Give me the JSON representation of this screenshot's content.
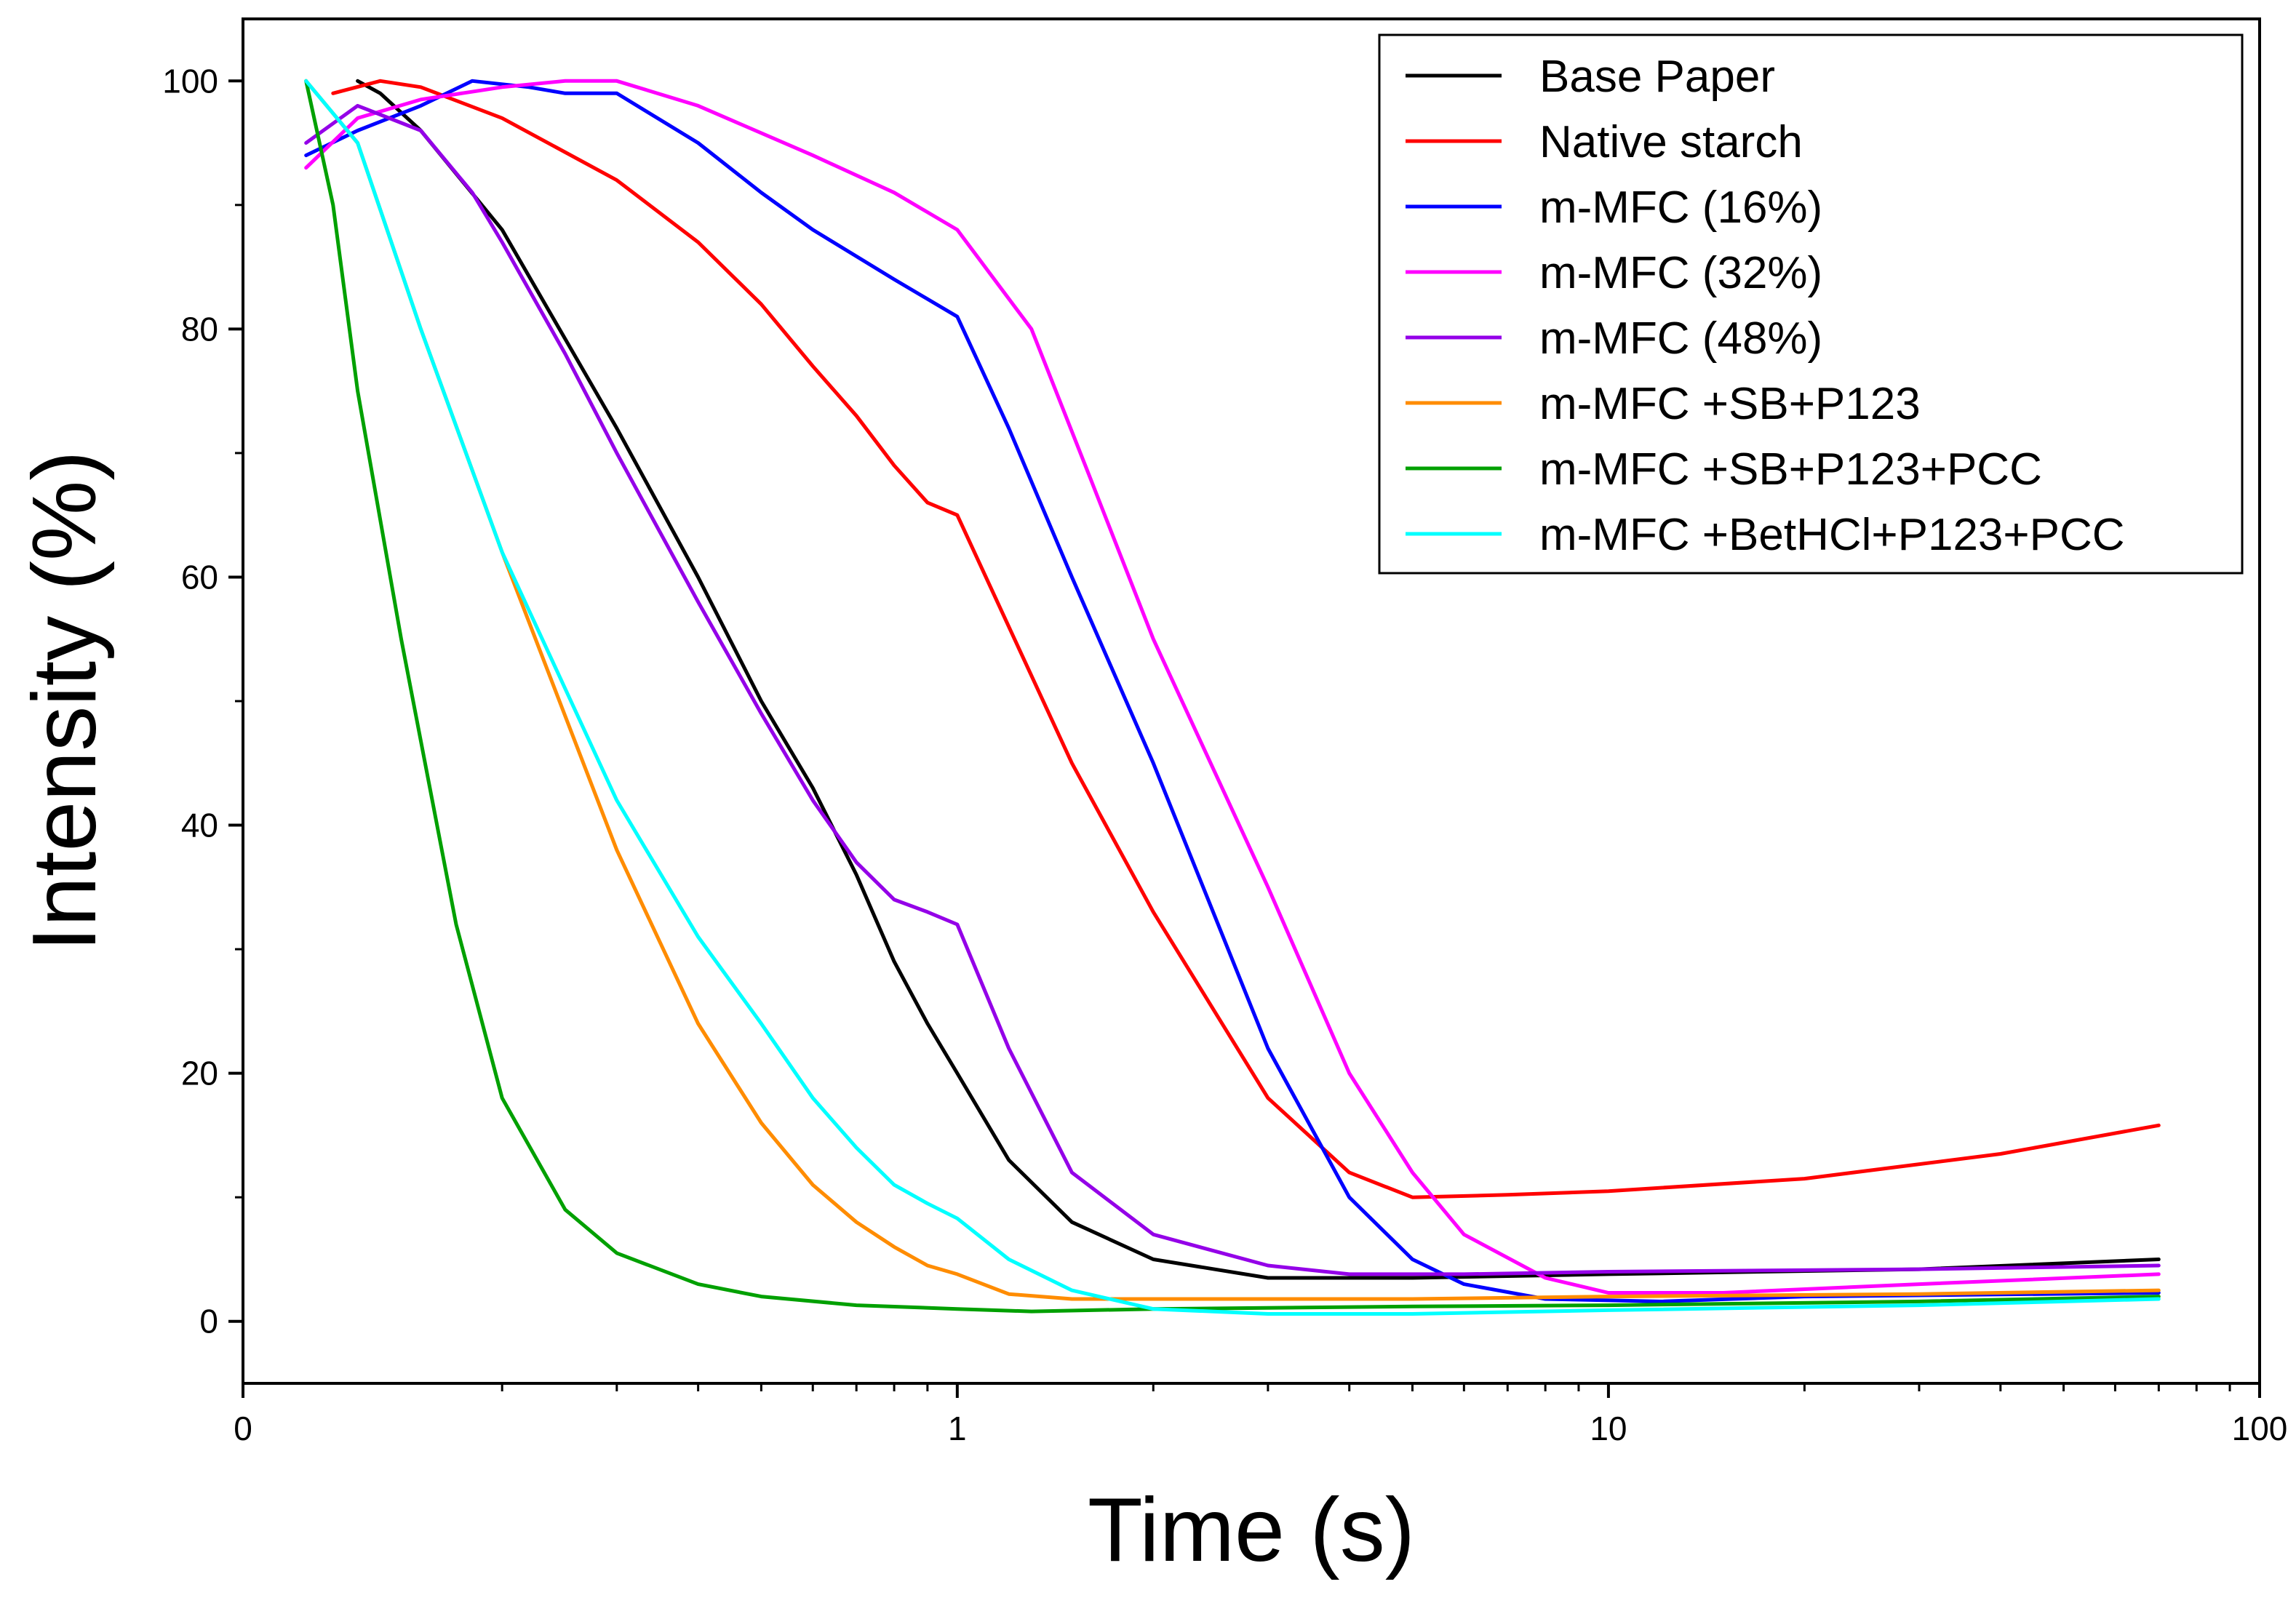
{
  "chart_data": {
    "type": "line",
    "title": "",
    "xlabel": "Time (s)",
    "ylabel": "Intensity (%)",
    "xscale": "log",
    "xlim": [
      0.08,
      100
    ],
    "ylim": [
      -5,
      105
    ],
    "x_ticks": [
      {
        "value": 0.08,
        "label": "0"
      },
      {
        "value": 1,
        "label": "1"
      },
      {
        "value": 10,
        "label": "10"
      },
      {
        "value": 100,
        "label": "100"
      }
    ],
    "y_ticks": [
      0,
      20,
      40,
      60,
      80,
      100
    ],
    "y_minor_step": 10,
    "grid": false,
    "legend_position": "top-right",
    "series": [
      {
        "name": "Base Paper",
        "color": "#000000",
        "points": [
          [
            0.12,
            100
          ],
          [
            0.13,
            99
          ],
          [
            0.15,
            96
          ],
          [
            0.2,
            88
          ],
          [
            0.3,
            72
          ],
          [
            0.4,
            60
          ],
          [
            0.5,
            50
          ],
          [
            0.6,
            43
          ],
          [
            0.7,
            36
          ],
          [
            0.8,
            29
          ],
          [
            0.9,
            24
          ],
          [
            1.0,
            20
          ],
          [
            1.2,
            13
          ],
          [
            1.5,
            8
          ],
          [
            2,
            5
          ],
          [
            3,
            3.5
          ],
          [
            5,
            3.5
          ],
          [
            10,
            3.8
          ],
          [
            30,
            4.2
          ],
          [
            70,
            5
          ]
        ]
      },
      {
        "name": "Native starch",
        "color": "#ff0000",
        "points": [
          [
            0.11,
            99
          ],
          [
            0.13,
            100
          ],
          [
            0.15,
            99.5
          ],
          [
            0.2,
            97
          ],
          [
            0.3,
            92
          ],
          [
            0.4,
            87
          ],
          [
            0.5,
            82
          ],
          [
            0.6,
            77
          ],
          [
            0.7,
            73
          ],
          [
            0.8,
            69
          ],
          [
            0.9,
            66
          ],
          [
            1.0,
            65
          ],
          [
            1.2,
            56
          ],
          [
            1.5,
            45
          ],
          [
            2,
            33
          ],
          [
            3,
            18
          ],
          [
            4,
            12
          ],
          [
            5,
            10
          ],
          [
            7,
            10.2
          ],
          [
            10,
            10.5
          ],
          [
            20,
            11.5
          ],
          [
            40,
            13.5
          ],
          [
            70,
            15.8
          ]
        ]
      },
      {
        "name": "m-MFC (16%)",
        "color": "#0000ff",
        "points": [
          [
            0.1,
            94
          ],
          [
            0.12,
            96
          ],
          [
            0.15,
            98
          ],
          [
            0.18,
            100
          ],
          [
            0.22,
            99.5
          ],
          [
            0.25,
            99
          ],
          [
            0.3,
            99
          ],
          [
            0.4,
            95
          ],
          [
            0.5,
            91
          ],
          [
            0.6,
            88
          ],
          [
            0.8,
            84
          ],
          [
            1.0,
            81
          ],
          [
            1.2,
            72
          ],
          [
            1.5,
            60
          ],
          [
            2,
            45
          ],
          [
            3,
            22
          ],
          [
            4,
            10
          ],
          [
            5,
            5
          ],
          [
            6,
            3
          ],
          [
            8,
            1.8
          ],
          [
            12,
            1.6
          ],
          [
            20,
            2
          ],
          [
            70,
            2.3
          ]
        ]
      },
      {
        "name": "m-MFC (32%)",
        "color": "#ff00ff",
        "points": [
          [
            0.1,
            93
          ],
          [
            0.12,
            97
          ],
          [
            0.15,
            98.5
          ],
          [
            0.2,
            99.5
          ],
          [
            0.25,
            100
          ],
          [
            0.3,
            100
          ],
          [
            0.4,
            98
          ],
          [
            0.6,
            94
          ],
          [
            0.8,
            91
          ],
          [
            1.0,
            88
          ],
          [
            1.3,
            80
          ],
          [
            1.6,
            68
          ],
          [
            2,
            55
          ],
          [
            3,
            35
          ],
          [
            4,
            20
          ],
          [
            5,
            12
          ],
          [
            6,
            7
          ],
          [
            8,
            3.5
          ],
          [
            10,
            2.3
          ],
          [
            15,
            2.3
          ],
          [
            30,
            3
          ],
          [
            70,
            3.8
          ]
        ]
      },
      {
        "name": "m-MFC (48%)",
        "color": "#9400e8",
        "points": [
          [
            0.1,
            95
          ],
          [
            0.12,
            98
          ],
          [
            0.15,
            96
          ],
          [
            0.18,
            91
          ],
          [
            0.2,
            87
          ],
          [
            0.25,
            78
          ],
          [
            0.3,
            70
          ],
          [
            0.4,
            58
          ],
          [
            0.5,
            49
          ],
          [
            0.6,
            42
          ],
          [
            0.7,
            37
          ],
          [
            0.8,
            34
          ],
          [
            0.9,
            33
          ],
          [
            1.0,
            32
          ],
          [
            1.2,
            22
          ],
          [
            1.5,
            12
          ],
          [
            2,
            7
          ],
          [
            3,
            4.5
          ],
          [
            4,
            3.8
          ],
          [
            6,
            3.8
          ],
          [
            10,
            4
          ],
          [
            30,
            4.2
          ],
          [
            70,
            4.5
          ]
        ]
      },
      {
        "name": "m-MFC +SB+P123",
        "color": "#ff8c00",
        "points": [
          [
            0.1,
            100
          ],
          [
            0.12,
            95
          ],
          [
            0.15,
            80
          ],
          [
            0.2,
            62
          ],
          [
            0.3,
            38
          ],
          [
            0.4,
            24
          ],
          [
            0.5,
            16
          ],
          [
            0.6,
            11
          ],
          [
            0.7,
            8
          ],
          [
            0.8,
            6
          ],
          [
            0.9,
            4.5
          ],
          [
            1.0,
            3.8
          ],
          [
            1.2,
            2.2
          ],
          [
            1.5,
            1.8
          ],
          [
            2,
            1.8
          ],
          [
            5,
            1.8
          ],
          [
            10,
            2
          ],
          [
            30,
            2.2
          ],
          [
            70,
            2.5
          ]
        ]
      },
      {
        "name": "m-MFC +SB+P123+PCC",
        "color": "#00a000",
        "points": [
          [
            0.1,
            100
          ],
          [
            0.11,
            90
          ],
          [
            0.12,
            75
          ],
          [
            0.14,
            55
          ],
          [
            0.17,
            32
          ],
          [
            0.2,
            18
          ],
          [
            0.25,
            9
          ],
          [
            0.3,
            5.5
          ],
          [
            0.4,
            3
          ],
          [
            0.5,
            2
          ],
          [
            0.7,
            1.3
          ],
          [
            1.0,
            1
          ],
          [
            1.3,
            0.8
          ],
          [
            2,
            1
          ],
          [
            5,
            1.2
          ],
          [
            10,
            1.3
          ],
          [
            30,
            1.6
          ],
          [
            70,
            2
          ]
        ]
      },
      {
        "name": "m-MFC +BetHCl+P123+PCC",
        "color": "#00ffff",
        "points": [
          [
            0.1,
            100
          ],
          [
            0.12,
            95
          ],
          [
            0.15,
            80
          ],
          [
            0.2,
            62
          ],
          [
            0.3,
            42
          ],
          [
            0.4,
            31
          ],
          [
            0.5,
            24
          ],
          [
            0.6,
            18
          ],
          [
            0.7,
            14
          ],
          [
            0.8,
            11
          ],
          [
            0.9,
            9.5
          ],
          [
            1.0,
            8.3
          ],
          [
            1.2,
            5
          ],
          [
            1.5,
            2.5
          ],
          [
            2,
            1
          ],
          [
            3,
            0.6
          ],
          [
            5,
            0.6
          ],
          [
            10,
            0.9
          ],
          [
            30,
            1.3
          ],
          [
            70,
            1.8
          ]
        ]
      }
    ]
  }
}
